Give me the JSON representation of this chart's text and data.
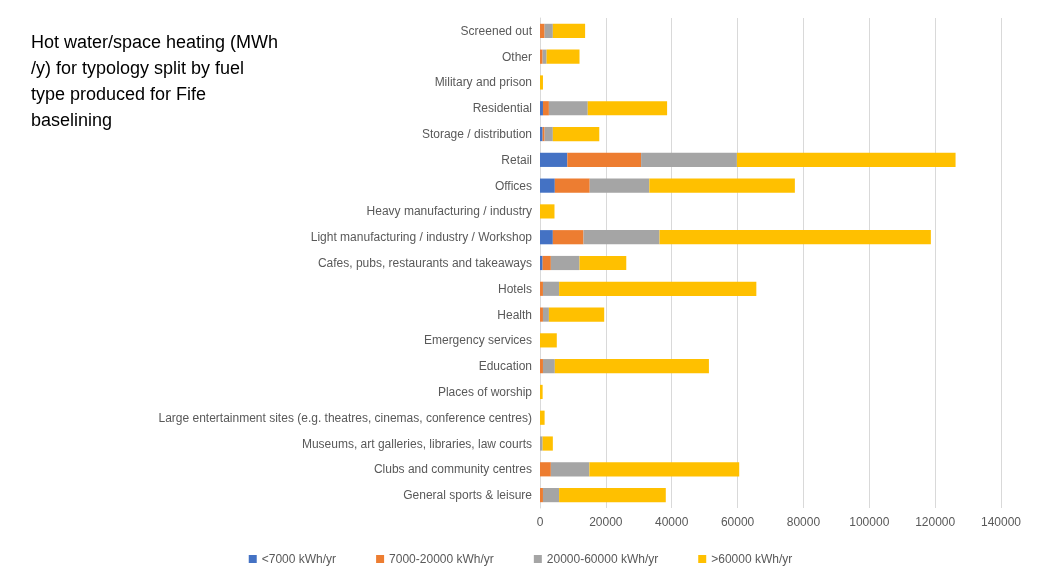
{
  "chart_data": {
    "type": "bar",
    "orientation": "horizontal",
    "stacked": true,
    "title": "Hot water/space heating (MWh/y) for typology split by fuel type produced for Fife baselining",
    "categories": [
      "Screened out",
      "Other",
      "Military and prison",
      "Residential",
      "Storage / distribution",
      "Retail",
      "Offices",
      "Heavy manufacturing / industry",
      "Light manufacturing / industry / Workshop",
      "Cafes, pubs, restaurants and takeaways",
      "Hotels",
      "Health",
      "Emergency services",
      "Education",
      "Places of worship",
      "Large entertainment sites (e.g. theatres, cinemas, conference centres)",
      "Museums, art galleries, libraries, law courts",
      "Clubs and community centres",
      "General sports & leisure"
    ],
    "series": [
      {
        "name": "<7000 kWh/yr",
        "color": "#4472c4",
        "values": [
          0,
          0,
          0,
          900,
          800,
          8300,
          4500,
          0,
          3900,
          800,
          0,
          0,
          0,
          0,
          0,
          0,
          0,
          0,
          0
        ]
      },
      {
        "name": "7000-20000 kWh/yr",
        "color": "#ed7d31",
        "values": [
          1400,
          800,
          0,
          1800,
          600,
          22400,
          10600,
          0,
          9300,
          2500,
          900,
          900,
          0,
          900,
          0,
          0,
          0,
          3300,
          900
        ]
      },
      {
        "name": "20000-60000 kWh/yr",
        "color": "#a5a5a5",
        "values": [
          2500,
          1200,
          0,
          11800,
          2500,
          29100,
          18100,
          0,
          23100,
          8700,
          4900,
          1800,
          0,
          3600,
          0,
          0,
          800,
          11700,
          4900
        ]
      },
      {
        "name": ">60000 kWh/yr",
        "color": "#ffc000",
        "values": [
          9800,
          10000,
          900,
          24100,
          14100,
          66400,
          44200,
          4400,
          82400,
          14200,
          59900,
          16800,
          5100,
          46800,
          800,
          1400,
          3100,
          45500,
          32400
        ]
      }
    ],
    "xlim": [
      0,
      140000
    ],
    "xticks": [
      0,
      20000,
      40000,
      60000,
      80000,
      100000,
      120000,
      140000
    ],
    "grid": "x",
    "legend": "bottom"
  }
}
